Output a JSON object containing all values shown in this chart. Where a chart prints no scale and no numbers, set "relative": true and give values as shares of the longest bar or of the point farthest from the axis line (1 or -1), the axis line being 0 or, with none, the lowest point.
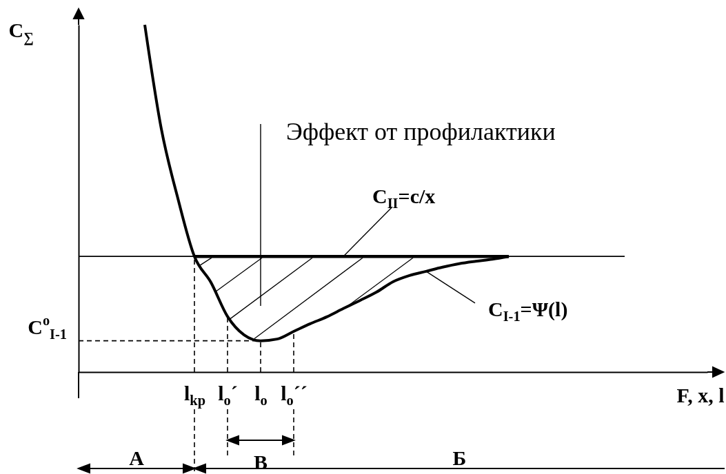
{
  "chart_data": {
    "type": "line",
    "relative": true,
    "xlabel": "F, x, l",
    "ylabel": "C$_{∑}$",
    "tick_labels": "x",
    "categories": [
      null,
      null,
      null,
      null,
      null,
      null,
      null,
      "l$_{kp}$",
      null,
      "l$_{o}$´",
      null,
      "l$_{o}$",
      null,
      "l$_{o}$´´",
      null,
      null,
      null,
      null,
      null,
      null,
      null,
      null,
      null,
      null,
      null,
      null,
      null,
      null,
      null,
      null,
      null,
      null,
      null,
      null,
      null,
      null,
      null,
      null,
      null
    ],
    "series": [
      {
        "name": "C$_{II}$=c/x",
        "color": "#000000",
        "values": [
          0.333,
          0.333,
          0.333,
          0.333,
          0.333,
          0.333,
          0.333,
          0.333,
          0.333,
          0.333,
          0.333,
          0.333,
          0.333,
          0.333,
          0.333,
          0.333,
          0.333,
          0.333,
          0.333,
          0.333,
          0.333,
          0.333,
          0.333,
          0.333,
          0.333,
          0.333,
          0.333,
          0.333,
          0.333,
          0.333,
          0.333,
          0.333,
          0.333,
          0.333,
          null,
          null,
          null,
          null,
          null
        ]
      },
      {
        "color": "#000000",
        "values": [
          null,
          null,
          null,
          null,
          null,
          null,
          null,
          0.333,
          0.333,
          0.333,
          0.333,
          0.333,
          0.333,
          0.333,
          0.333,
          0.333,
          0.333,
          0.333,
          0.333,
          0.333,
          0.333,
          0.333,
          0.333,
          0.333,
          0.333,
          0.333,
          0.333,
          null,
          null,
          null,
          null,
          null,
          null,
          null,
          null,
          null,
          null,
          null,
          null
        ]
      },
      {
        "name": "C$_{I-1}$=Ψ(l)",
        "color": "#000000",
        "values": [
          null,
          null,
          null,
          null,
          1.0,
          0.7,
          0.5,
          0.333,
          0.258,
          0.16,
          0.107,
          0.09,
          0.095,
          0.117,
          0.139,
          0.159,
          0.183,
          0.206,
          0.23,
          0.26,
          0.278,
          0.29,
          0.302,
          0.312,
          0.319,
          0.325,
          0.333,
          null,
          null,
          null,
          null,
          null,
          null,
          null,
          null,
          null,
          null,
          null,
          null
        ]
      }
    ],
    "ref_lines": [
      {
        "axis": "x",
        "value": "l$_{kp}$",
        "line_style": "dashed"
      },
      {
        "axis": "x",
        "value": "l$_{o}$´",
        "line_style": "dashed"
      },
      {
        "axis": "x",
        "value": "l$_{o}$",
        "line_style": "dashed"
      },
      {
        "axis": "x",
        "value": "l$_{o}$´´",
        "line_style": "dashed"
      },
      {
        "axis": "y",
        "value": 0.09,
        "label": "C$^{o}$$_{I-1}$",
        "line_style": "dashed"
      }
    ],
    "annotations": [
      "Эффект от профилактики",
      "А",
      "Б",
      "В"
    ]
  }
}
